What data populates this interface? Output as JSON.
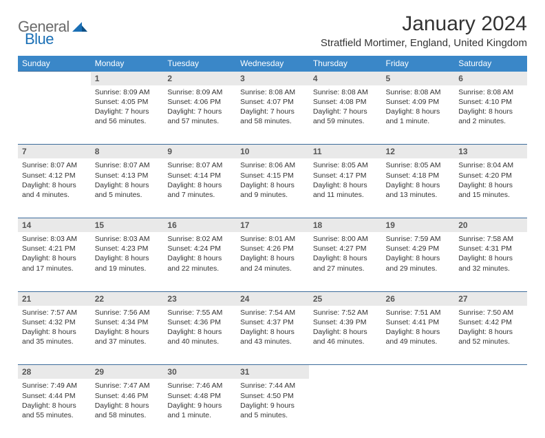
{
  "logo": {
    "word1": "General",
    "word2": "Blue"
  },
  "title": "January 2024",
  "location": "Stratfield Mortimer, England, United Kingdom",
  "header_bg": "#3a87c8",
  "daynum_bg": "#e9e9e9",
  "rule_color": "#3a6a9a",
  "weekdays": [
    "Sunday",
    "Monday",
    "Tuesday",
    "Wednesday",
    "Thursday",
    "Friday",
    "Saturday"
  ],
  "weeks": [
    {
      "nums": [
        "",
        "1",
        "2",
        "3",
        "4",
        "5",
        "6"
      ],
      "cells": [
        {
          "sunrise": "",
          "sunset": "",
          "daylight": ""
        },
        {
          "sunrise": "Sunrise: 8:09 AM",
          "sunset": "Sunset: 4:05 PM",
          "daylight": "Daylight: 7 hours and 56 minutes."
        },
        {
          "sunrise": "Sunrise: 8:09 AM",
          "sunset": "Sunset: 4:06 PM",
          "daylight": "Daylight: 7 hours and 57 minutes."
        },
        {
          "sunrise": "Sunrise: 8:08 AM",
          "sunset": "Sunset: 4:07 PM",
          "daylight": "Daylight: 7 hours and 58 minutes."
        },
        {
          "sunrise": "Sunrise: 8:08 AM",
          "sunset": "Sunset: 4:08 PM",
          "daylight": "Daylight: 7 hours and 59 minutes."
        },
        {
          "sunrise": "Sunrise: 8:08 AM",
          "sunset": "Sunset: 4:09 PM",
          "daylight": "Daylight: 8 hours and 1 minute."
        },
        {
          "sunrise": "Sunrise: 8:08 AM",
          "sunset": "Sunset: 4:10 PM",
          "daylight": "Daylight: 8 hours and 2 minutes."
        }
      ]
    },
    {
      "nums": [
        "7",
        "8",
        "9",
        "10",
        "11",
        "12",
        "13"
      ],
      "cells": [
        {
          "sunrise": "Sunrise: 8:07 AM",
          "sunset": "Sunset: 4:12 PM",
          "daylight": "Daylight: 8 hours and 4 minutes."
        },
        {
          "sunrise": "Sunrise: 8:07 AM",
          "sunset": "Sunset: 4:13 PM",
          "daylight": "Daylight: 8 hours and 5 minutes."
        },
        {
          "sunrise": "Sunrise: 8:07 AM",
          "sunset": "Sunset: 4:14 PM",
          "daylight": "Daylight: 8 hours and 7 minutes."
        },
        {
          "sunrise": "Sunrise: 8:06 AM",
          "sunset": "Sunset: 4:15 PM",
          "daylight": "Daylight: 8 hours and 9 minutes."
        },
        {
          "sunrise": "Sunrise: 8:05 AM",
          "sunset": "Sunset: 4:17 PM",
          "daylight": "Daylight: 8 hours and 11 minutes."
        },
        {
          "sunrise": "Sunrise: 8:05 AM",
          "sunset": "Sunset: 4:18 PM",
          "daylight": "Daylight: 8 hours and 13 minutes."
        },
        {
          "sunrise": "Sunrise: 8:04 AM",
          "sunset": "Sunset: 4:20 PM",
          "daylight": "Daylight: 8 hours and 15 minutes."
        }
      ]
    },
    {
      "nums": [
        "14",
        "15",
        "16",
        "17",
        "18",
        "19",
        "20"
      ],
      "cells": [
        {
          "sunrise": "Sunrise: 8:03 AM",
          "sunset": "Sunset: 4:21 PM",
          "daylight": "Daylight: 8 hours and 17 minutes."
        },
        {
          "sunrise": "Sunrise: 8:03 AM",
          "sunset": "Sunset: 4:23 PM",
          "daylight": "Daylight: 8 hours and 19 minutes."
        },
        {
          "sunrise": "Sunrise: 8:02 AM",
          "sunset": "Sunset: 4:24 PM",
          "daylight": "Daylight: 8 hours and 22 minutes."
        },
        {
          "sunrise": "Sunrise: 8:01 AM",
          "sunset": "Sunset: 4:26 PM",
          "daylight": "Daylight: 8 hours and 24 minutes."
        },
        {
          "sunrise": "Sunrise: 8:00 AM",
          "sunset": "Sunset: 4:27 PM",
          "daylight": "Daylight: 8 hours and 27 minutes."
        },
        {
          "sunrise": "Sunrise: 7:59 AM",
          "sunset": "Sunset: 4:29 PM",
          "daylight": "Daylight: 8 hours and 29 minutes."
        },
        {
          "sunrise": "Sunrise: 7:58 AM",
          "sunset": "Sunset: 4:31 PM",
          "daylight": "Daylight: 8 hours and 32 minutes."
        }
      ]
    },
    {
      "nums": [
        "21",
        "22",
        "23",
        "24",
        "25",
        "26",
        "27"
      ],
      "cells": [
        {
          "sunrise": "Sunrise: 7:57 AM",
          "sunset": "Sunset: 4:32 PM",
          "daylight": "Daylight: 8 hours and 35 minutes."
        },
        {
          "sunrise": "Sunrise: 7:56 AM",
          "sunset": "Sunset: 4:34 PM",
          "daylight": "Daylight: 8 hours and 37 minutes."
        },
        {
          "sunrise": "Sunrise: 7:55 AM",
          "sunset": "Sunset: 4:36 PM",
          "daylight": "Daylight: 8 hours and 40 minutes."
        },
        {
          "sunrise": "Sunrise: 7:54 AM",
          "sunset": "Sunset: 4:37 PM",
          "daylight": "Daylight: 8 hours and 43 minutes."
        },
        {
          "sunrise": "Sunrise: 7:52 AM",
          "sunset": "Sunset: 4:39 PM",
          "daylight": "Daylight: 8 hours and 46 minutes."
        },
        {
          "sunrise": "Sunrise: 7:51 AM",
          "sunset": "Sunset: 4:41 PM",
          "daylight": "Daylight: 8 hours and 49 minutes."
        },
        {
          "sunrise": "Sunrise: 7:50 AM",
          "sunset": "Sunset: 4:42 PM",
          "daylight": "Daylight: 8 hours and 52 minutes."
        }
      ]
    },
    {
      "nums": [
        "28",
        "29",
        "30",
        "31",
        "",
        "",
        ""
      ],
      "cells": [
        {
          "sunrise": "Sunrise: 7:49 AM",
          "sunset": "Sunset: 4:44 PM",
          "daylight": "Daylight: 8 hours and 55 minutes."
        },
        {
          "sunrise": "Sunrise: 7:47 AM",
          "sunset": "Sunset: 4:46 PM",
          "daylight": "Daylight: 8 hours and 58 minutes."
        },
        {
          "sunrise": "Sunrise: 7:46 AM",
          "sunset": "Sunset: 4:48 PM",
          "daylight": "Daylight: 9 hours and 1 minute."
        },
        {
          "sunrise": "Sunrise: 7:44 AM",
          "sunset": "Sunset: 4:50 PM",
          "daylight": "Daylight: 9 hours and 5 minutes."
        },
        {
          "sunrise": "",
          "sunset": "",
          "daylight": ""
        },
        {
          "sunrise": "",
          "sunset": "",
          "daylight": ""
        },
        {
          "sunrise": "",
          "sunset": "",
          "daylight": ""
        }
      ]
    }
  ]
}
